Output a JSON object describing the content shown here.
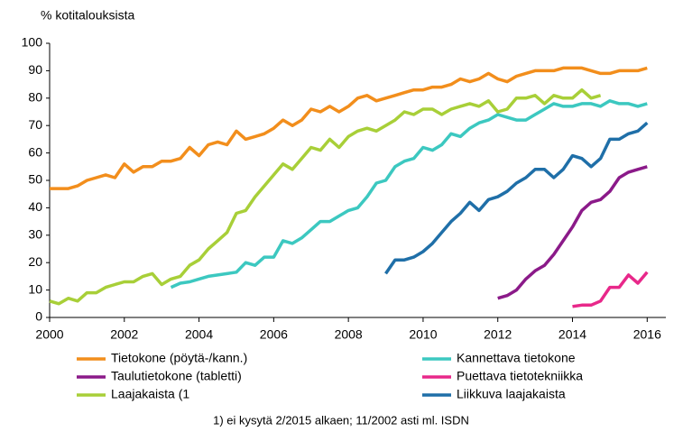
{
  "chart_data": {
    "type": "line",
    "y_label": "% kotitalouksista",
    "footnote": "1) ei kysytä 2/2015 alkaen;  11/2002 asti ml. ISDN",
    "x": [
      2000,
      2000.25,
      2000.5,
      2000.75,
      2001,
      2001.25,
      2001.5,
      2001.75,
      2002,
      2002.25,
      2002.5,
      2002.75,
      2003,
      2003.25,
      2003.5,
      2003.75,
      2004,
      2004.25,
      2004.5,
      2004.75,
      2005,
      2005.25,
      2005.5,
      2005.75,
      2006,
      2006.25,
      2006.5,
      2006.75,
      2007,
      2007.25,
      2007.5,
      2007.75,
      2008,
      2008.25,
      2008.5,
      2008.75,
      2009,
      2009.25,
      2009.5,
      2009.75,
      2010,
      2010.25,
      2010.5,
      2010.75,
      2011,
      2011.25,
      2011.5,
      2011.75,
      2012,
      2012.25,
      2012.5,
      2012.75,
      2013,
      2013.25,
      2013.5,
      2013.75,
      2014,
      2014.25,
      2014.5,
      2014.75,
      2015,
      2015.25,
      2015.5,
      2015.75,
      2016
    ],
    "series": [
      {
        "name": "Tietokone (pöytä-/kann.)",
        "color": "#f28e1c",
        "values": [
          47,
          47,
          47,
          48,
          50,
          51,
          52,
          51,
          56,
          53,
          55,
          55,
          57,
          57,
          58,
          62,
          59,
          63,
          64,
          63,
          68,
          65,
          66,
          67,
          69,
          72,
          70,
          72,
          76,
          75,
          77,
          75,
          77,
          80,
          81,
          79,
          80,
          81,
          82,
          83,
          83,
          84,
          84,
          85,
          87,
          86,
          87,
          89,
          87,
          86,
          88,
          89,
          90,
          90,
          90,
          91,
          91,
          91,
          90,
          89,
          89,
          90,
          90,
          90,
          91
        ]
      },
      {
        "name": "Kannettava tietokone",
        "color": "#3cc8c0",
        "values": [
          null,
          null,
          null,
          null,
          null,
          null,
          null,
          null,
          null,
          null,
          null,
          null,
          null,
          11,
          12.5,
          13,
          14,
          15,
          15.5,
          16,
          16.5,
          20,
          19,
          22,
          22,
          28,
          27,
          29,
          32,
          35,
          35,
          37,
          39,
          40,
          44,
          49,
          50,
          55,
          57,
          58,
          62,
          61,
          63,
          67,
          66,
          69,
          71,
          72,
          74,
          73,
          72,
          72,
          74,
          76,
          78,
          77,
          77,
          78,
          78,
          77,
          79,
          78,
          78,
          77,
          78
        ]
      },
      {
        "name": "Taulutietokone (tabletti)",
        "color": "#8b1a89",
        "values": [
          null,
          null,
          null,
          null,
          null,
          null,
          null,
          null,
          null,
          null,
          null,
          null,
          null,
          null,
          null,
          null,
          null,
          null,
          null,
          null,
          null,
          null,
          null,
          null,
          null,
          null,
          null,
          null,
          null,
          null,
          null,
          null,
          null,
          null,
          null,
          null,
          null,
          null,
          null,
          null,
          null,
          null,
          null,
          null,
          null,
          null,
          null,
          null,
          7,
          8,
          10,
          14,
          17,
          19,
          23,
          28,
          33,
          39,
          42,
          43,
          46,
          51,
          53,
          54,
          55
        ]
      },
      {
        "name": "Puettava tietotekniikka",
        "color": "#e8288a",
        "values": [
          null,
          null,
          null,
          null,
          null,
          null,
          null,
          null,
          null,
          null,
          null,
          null,
          null,
          null,
          null,
          null,
          null,
          null,
          null,
          null,
          null,
          null,
          null,
          null,
          null,
          null,
          null,
          null,
          null,
          null,
          null,
          null,
          null,
          null,
          null,
          null,
          null,
          null,
          null,
          null,
          null,
          null,
          null,
          null,
          null,
          null,
          null,
          null,
          null,
          null,
          null,
          null,
          null,
          null,
          null,
          null,
          4,
          4.5,
          4.5,
          6,
          11,
          11,
          15.5,
          12.5,
          16.5
        ]
      },
      {
        "name": "Laajakaista (1",
        "color": "#a8cf38",
        "values": [
          6,
          5,
          7,
          6,
          9,
          9,
          11,
          12,
          13,
          13,
          15,
          16,
          12,
          14,
          15,
          19,
          21,
          25,
          28,
          31,
          38,
          39,
          44,
          48,
          52,
          56,
          54,
          58,
          62,
          61,
          65,
          62,
          66,
          68,
          69,
          68,
          70,
          72,
          75,
          74,
          76,
          76,
          74,
          76,
          77,
          78,
          77,
          79,
          75,
          76,
          80,
          80,
          81,
          78,
          81,
          80,
          80,
          83,
          80,
          81,
          null,
          null,
          null,
          null,
          null
        ]
      },
      {
        "name": "Liikkuva laajakaista",
        "color": "#1f6fa8",
        "values": [
          null,
          null,
          null,
          null,
          null,
          null,
          null,
          null,
          null,
          null,
          null,
          null,
          null,
          null,
          null,
          null,
          null,
          null,
          null,
          null,
          null,
          null,
          null,
          null,
          null,
          null,
          null,
          null,
          null,
          null,
          null,
          null,
          null,
          null,
          null,
          null,
          16,
          21,
          21,
          22,
          24,
          27,
          31,
          35,
          38,
          42,
          39,
          43,
          44,
          46,
          49,
          51,
          54,
          54,
          51,
          54,
          59,
          58,
          55,
          58,
          65,
          65,
          67,
          68,
          71
        ]
      }
    ],
    "xlim": [
      2000,
      2016.5
    ],
    "xticks": [
      2000,
      2002,
      2004,
      2006,
      2008,
      2010,
      2012,
      2014,
      2016
    ],
    "ylim": [
      0,
      100
    ],
    "yticks": [
      0,
      10,
      20,
      30,
      40,
      50,
      60,
      70,
      80,
      90,
      100
    ],
    "grid": false
  }
}
